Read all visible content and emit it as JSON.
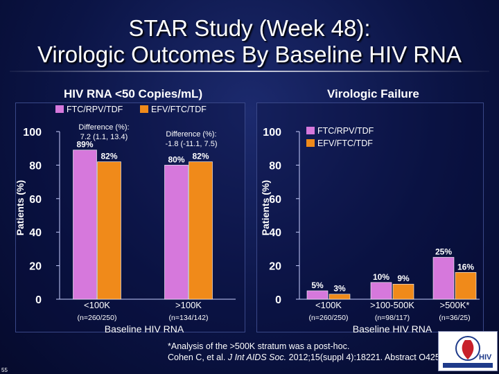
{
  "title_line1": "STAR Study (Week 48):",
  "title_line2": "Virologic Outcomes By Baseline HIV RNA",
  "colors": {
    "ftc": "#d678dc",
    "efv": "#f08a1a",
    "background": "#0b1445",
    "text": "#ffffff"
  },
  "footnote": {
    "line1": "*Analysis of the >500K stratum was a post-hoc.",
    "line2_pre": "Cohen C, et al. ",
    "line2_journal": "J Int AIDS Soc.",
    "line2_post": " 2012;15(suppl 4):18221. Abstract O425."
  },
  "slide_number": "55",
  "logo": {
    "icon": "national-hiv-curriculum-logo",
    "text": "HIV"
  },
  "chart_data": [
    {
      "type": "bar",
      "title": "HIV RNA <50 Copies/mL)",
      "ylabel": "Patients (%)",
      "xlabel": "Baseline HIV RNA",
      "ylim": [
        0,
        100
      ],
      "yticks": [
        "0",
        "20",
        "40",
        "60",
        "80",
        "100"
      ],
      "legend_position": "top",
      "categories": [
        "<100K",
        ">100K"
      ],
      "category_sublabels": [
        "(n=260/250)",
        "(n=134/142)"
      ],
      "series": [
        {
          "name": "FTC/RPV/TDF",
          "color": "#d678dc",
          "values": [
            89,
            80
          ],
          "labels": [
            "89%",
            "80%"
          ]
        },
        {
          "name": "EFV/FTC/TDF",
          "color": "#f08a1a",
          "values": [
            82,
            82
          ],
          "labels": [
            "82%",
            "82%"
          ]
        }
      ],
      "annotations": [
        {
          "label": "Difference (%):",
          "value": "7.2 (1.1, 13.4)"
        },
        {
          "label": "Difference (%):",
          "value": "-1.8 (-11.1, 7.5)"
        }
      ]
    },
    {
      "type": "bar",
      "title": "Virologic Failure",
      "ylabel": "Patients (%)",
      "xlabel": "Baseline HIV RNA",
      "ylim": [
        0,
        100
      ],
      "yticks": [
        "0",
        "20",
        "40",
        "60",
        "80",
        "100"
      ],
      "legend_position": "top-right",
      "categories": [
        "<100K",
        ">100-500K",
        ">500K*"
      ],
      "category_sublabels": [
        "(n=260/250)",
        "(n=98/117)",
        "(n=36/25)"
      ],
      "series": [
        {
          "name": "FTC/RPV/TDF",
          "color": "#d678dc",
          "values": [
            5,
            10,
            25
          ],
          "labels": [
            "5%",
            "10%",
            "25%"
          ]
        },
        {
          "name": "EFV/FTC/TDF",
          "color": "#f08a1a",
          "values": [
            3,
            9,
            16
          ],
          "labels": [
            "3%",
            "9%",
            "16%"
          ]
        }
      ]
    }
  ]
}
